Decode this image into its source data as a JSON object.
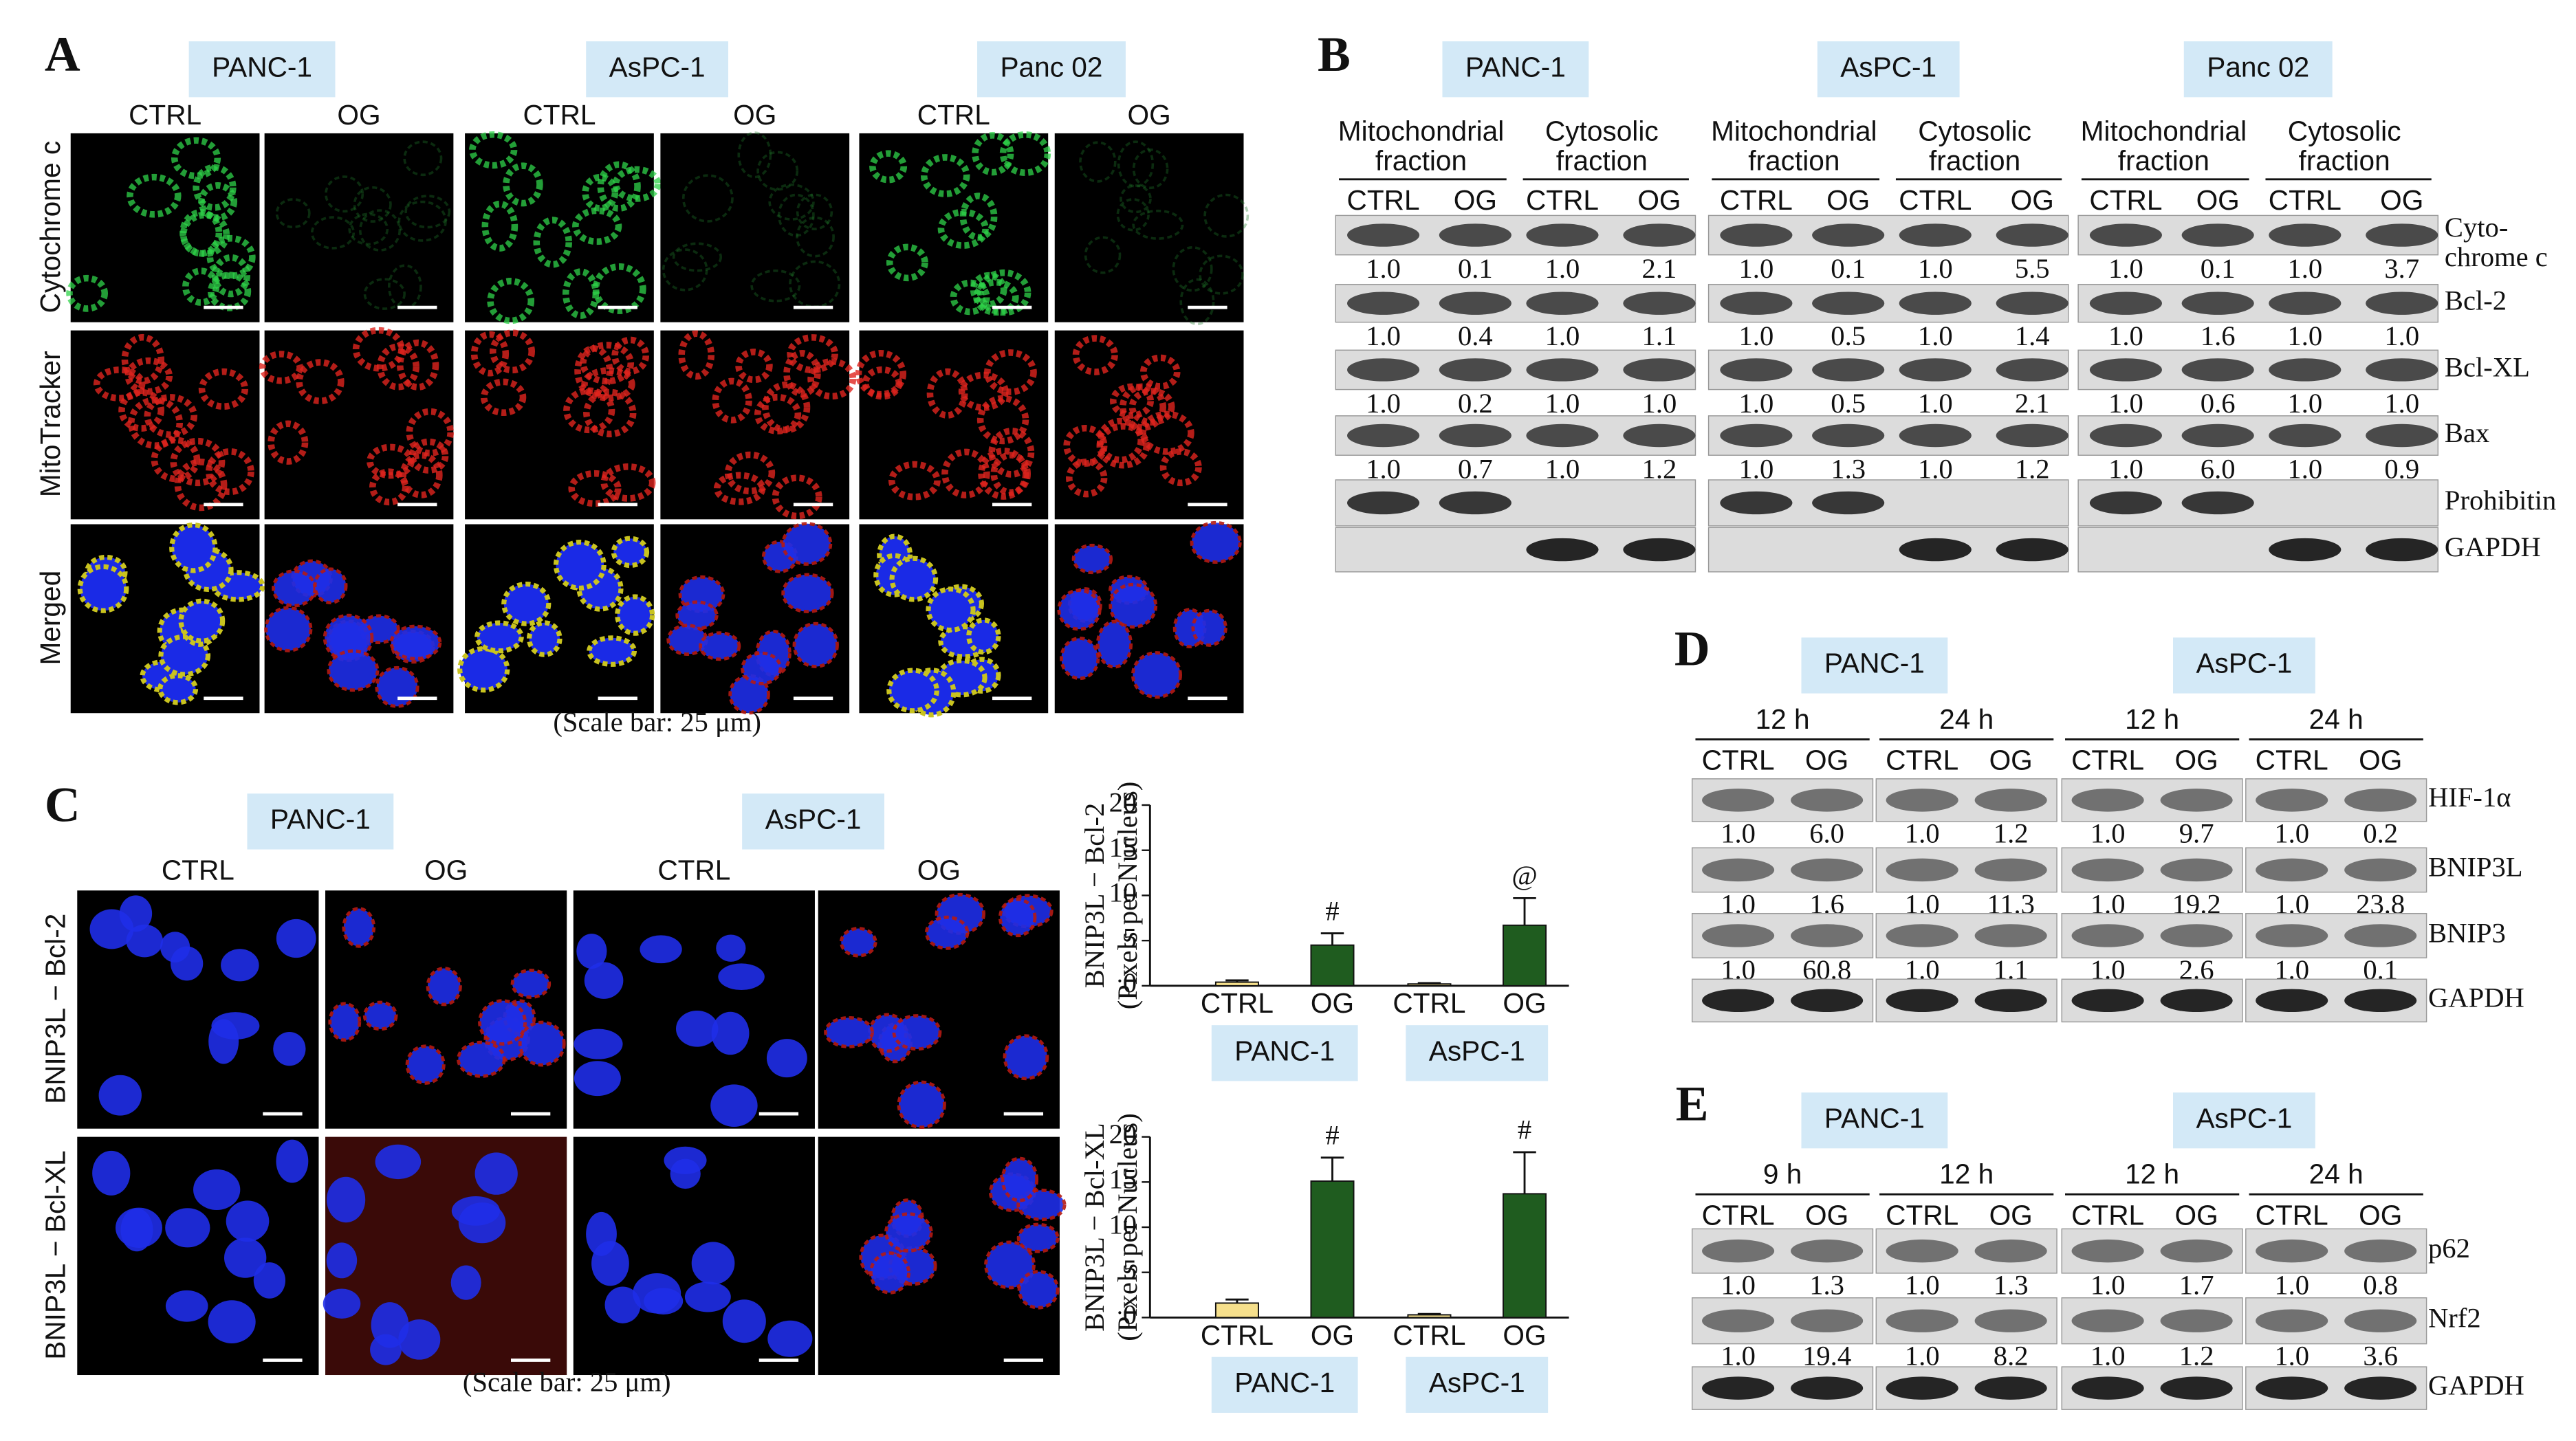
{
  "panel_a": {
    "label": "A",
    "cell_lines": [
      "PANC-1",
      "AsPC-1",
      "Panc 02"
    ],
    "conditions": [
      "CTRL",
      "OG"
    ],
    "rows": [
      "Cytochrome c",
      "MitoTracker",
      "Merged"
    ],
    "row_colors": [
      "#22b14c",
      "#e8262a",
      "#f0c419"
    ],
    "note": "(Scale bar: 25 μm)"
  },
  "panel_b": {
    "label": "B",
    "cell_lines": [
      "PANC-1",
      "AsPC-1",
      "Panc 02"
    ],
    "fractions": [
      [
        "Mitochondrial",
        "fraction"
      ],
      [
        "Cytosolic",
        "fraction"
      ]
    ],
    "conditions": [
      "CTRL",
      "OG"
    ],
    "proteins": [
      {
        "name": [
          "Cyto-",
          "chrome c"
        ],
        "values": [
          "1.0",
          "0.1",
          "1.0",
          "2.1",
          "1.0",
          "0.1",
          "1.0",
          "5.5",
          "1.0",
          "0.1",
          "1.0",
          "3.7"
        ]
      },
      {
        "name": [
          "Bcl-2"
        ],
        "values": [
          "1.0",
          "0.4",
          "1.0",
          "1.1",
          "1.0",
          "0.5",
          "1.0",
          "1.4",
          "1.0",
          "1.6",
          "1.0",
          "1.0"
        ]
      },
      {
        "name": [
          "Bcl-XL"
        ],
        "values": [
          "1.0",
          "0.2",
          "1.0",
          "1.0",
          "1.0",
          "0.5",
          "1.0",
          "2.1",
          "1.0",
          "0.6",
          "1.0",
          "1.0"
        ]
      },
      {
        "name": [
          "Bax"
        ],
        "values": [
          "1.0",
          "0.7",
          "1.0",
          "1.2",
          "1.0",
          "1.3",
          "1.0",
          "1.2",
          "1.0",
          "6.0",
          "1.0",
          "0.9"
        ]
      },
      {
        "name": [
          "Prohibitin"
        ]
      },
      {
        "name": [
          "GAPDH"
        ]
      }
    ]
  },
  "panel_c": {
    "label": "C",
    "cell_lines": [
      "PANC-1",
      "AsPC-1"
    ],
    "conditions": [
      "CTRL",
      "OG"
    ],
    "rows": [
      "BNIP3L − Bcl-2",
      "BNIP3L − Bcl-XL"
    ],
    "note": "(Scale bar: 25 μm)"
  },
  "chart_data": [
    {
      "type": "bar",
      "y_label": [
        "BNIP3L − Bcl-2",
        "(Pixels per Nucleus)"
      ],
      "categories": [
        "CTRL",
        "OG",
        "CTRL",
        "OG"
      ],
      "groups": [
        "PANC-1",
        "AsPC-1"
      ],
      "values": [
        0.4,
        4.5,
        0.2,
        6.7
      ],
      "errors": [
        0.2,
        1.3,
        0.1,
        3.0
      ],
      "markers": [
        null,
        "#",
        null,
        "@"
      ],
      "colors": [
        "#f6e08c",
        "#1f5c1f",
        "#f6e08c",
        "#1f5c1f"
      ],
      "ylim": [
        0,
        20
      ],
      "yticks": [
        0,
        5,
        10,
        15,
        20
      ]
    },
    {
      "type": "bar",
      "y_label": [
        "BNIP3L − Bcl-XL",
        "(Pixels per Nucleus)"
      ],
      "categories": [
        "CTRL",
        "OG",
        "CTRL",
        "OG"
      ],
      "groups": [
        "PANC-1",
        "AsPC-1"
      ],
      "values": [
        1.6,
        15.1,
        0.3,
        13.7
      ],
      "errors": [
        0.4,
        2.6,
        0.1,
        4.6
      ],
      "markers": [
        null,
        "#",
        null,
        "#"
      ],
      "colors": [
        "#f6e08c",
        "#1f5c1f",
        "#f6e08c",
        "#1f5c1f"
      ],
      "ylim": [
        0,
        20
      ],
      "yticks": [
        0,
        5,
        10,
        15,
        20
      ]
    }
  ],
  "panel_d": {
    "label": "D",
    "cell_lines": [
      "PANC-1",
      "AsPC-1"
    ],
    "times": [
      "12 h",
      "24 h",
      "12 h",
      "24 h"
    ],
    "conditions": [
      "CTRL",
      "OG"
    ],
    "proteins": [
      {
        "name": "HIF-1α",
        "values": [
          "1.0",
          "6.0",
          "1.0",
          "1.2",
          "1.0",
          "9.7",
          "1.0",
          "0.2"
        ]
      },
      {
        "name": "BNIP3L",
        "values": [
          "1.0",
          "1.6",
          "1.0",
          "11.3",
          "1.0",
          "19.2",
          "1.0",
          "23.8"
        ]
      },
      {
        "name": "BNIP3",
        "values": [
          "1.0",
          "60.8",
          "1.0",
          "1.1",
          "1.0",
          "2.6",
          "1.0",
          "0.1"
        ]
      },
      {
        "name": "GAPDH"
      }
    ]
  },
  "panel_e": {
    "label": "E",
    "cell_lines": [
      "PANC-1",
      "AsPC-1"
    ],
    "times": [
      "9 h",
      "12 h",
      "12 h",
      "24 h"
    ],
    "conditions": [
      "CTRL",
      "OG"
    ],
    "proteins": [
      {
        "name": "p62",
        "values": [
          "1.0",
          "1.3",
          "1.0",
          "1.3",
          "1.0",
          "1.7",
          "1.0",
          "0.8"
        ]
      },
      {
        "name": "Nrf2",
        "values": [
          "1.0",
          "19.4",
          "1.0",
          "8.2",
          "1.0",
          "1.2",
          "1.0",
          "3.6"
        ]
      },
      {
        "name": "GAPDH"
      }
    ]
  }
}
